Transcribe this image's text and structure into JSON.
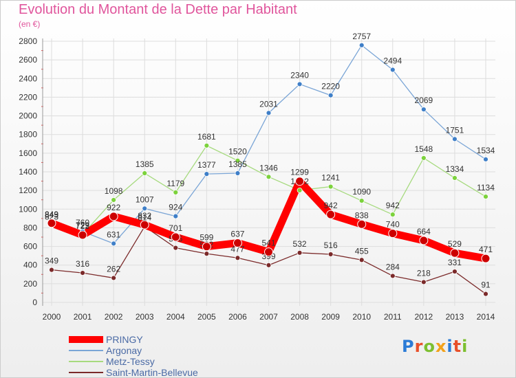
{
  "title": "Evolution du Montant de la Dette par Habitant",
  "subtitle": "(en €)",
  "logo": {
    "text": "Proxiti",
    "colors": [
      "#2b7bd6",
      "#e8502a",
      "#7cbf30",
      "#f2a21b",
      "#2b7bd6",
      "#e8502a",
      "#7cbf30"
    ]
  },
  "chart_data": {
    "type": "line",
    "title": "Evolution du Montant de la Dette par Habitant",
    "ylabel": "(en €)",
    "xlabel": "",
    "x": [
      "2000",
      "2001",
      "2002",
      "2003",
      "2004",
      "2005",
      "2006",
      "2007",
      "2008",
      "2009",
      "2010",
      "2011",
      "2012",
      "2013",
      "2014"
    ],
    "ylim": [
      0,
      2800
    ],
    "yticks": [
      0,
      200,
      400,
      600,
      800,
      1000,
      1200,
      1400,
      1600,
      1800,
      2000,
      2200,
      2400,
      2600,
      2800
    ],
    "grid": true,
    "legend": "bottom-left",
    "series": [
      {
        "name": "Saint-Martin-Bellevue",
        "color": "#7b2a2a",
        "marker": "#7b2a2a",
        "values": [
          349,
          316,
          262,
          814,
          585,
          522,
          477,
          399,
          532,
          516,
          455,
          284,
          218,
          331,
          91
        ],
        "labels": [
          "349",
          "316",
          "262",
          "814",
          "585",
          "522",
          "477",
          "399",
          "532",
          "516",
          "455",
          "284",
          "218",
          "331",
          "91"
        ]
      },
      {
        "name": "Metz-Tessy",
        "color": "#a6da7e",
        "marker": "#7cd23c",
        "values": [
          823,
          729,
          1098,
          1385,
          1179,
          1681,
          1520,
          1346,
          1202,
          1241,
          1090,
          942,
          1548,
          1334,
          1134
        ],
        "labels": [
          "823",
          "729",
          "1098",
          "1385",
          "1179",
          "1681",
          "1520",
          "1346",
          "1202",
          "1241",
          "1090",
          "942",
          "1548",
          "1334",
          "1134"
        ]
      },
      {
        "name": "Argonay",
        "color": "#7aa5d6",
        "marker": "#3f7fc8",
        "values": [
          843,
          760,
          631,
          1007,
          924,
          1377,
          1385,
          2031,
          2340,
          2220,
          2757,
          2494,
          2069,
          1751,
          1534
        ],
        "labels": [
          "843",
          "760",
          "631",
          "1007",
          "924",
          "1377",
          "1385",
          "2031",
          "2340",
          "2220",
          "2757",
          "2494",
          "2069",
          "1751",
          "1534"
        ]
      },
      {
        "name": "PRINGY",
        "color": "#ff0000",
        "marker": "#cc0000",
        "values": [
          849,
          722,
          922,
          832,
          701,
          599,
          637,
          541,
          1299,
          942,
          838,
          740,
          664,
          529,
          471
        ],
        "labels": [
          "849",
          "722",
          "922",
          "832",
          "701",
          "599",
          "637",
          "541",
          "1299",
          "942",
          "838",
          "740",
          "664",
          "529",
          "471"
        ]
      }
    ]
  }
}
